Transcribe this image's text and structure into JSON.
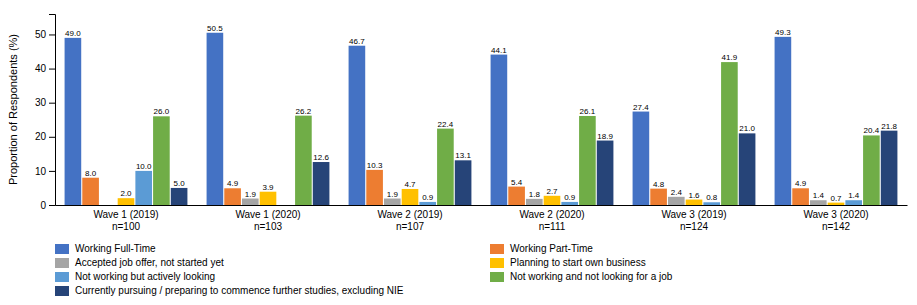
{
  "chart_data": {
    "type": "bar",
    "categories": [
      "Wave 1 (2019)\nn=100",
      "Wave 1 (2020)\nn=103",
      "Wave 2 (2019)\nn=107",
      "Wave 2 (2020)\nn=111",
      "Wave 3 (2019)\nn=124",
      "Wave 3 (2020)\nn=142"
    ],
    "series": [
      {
        "name": "Working Full-Time",
        "color": "#4472C4",
        "values": [
          49.0,
          50.5,
          46.7,
          44.1,
          27.4,
          49.3
        ],
        "value_labels": [
          "49.0",
          "50.5",
          "46.7",
          "44.1",
          "27.4",
          "49.3"
        ]
      },
      {
        "name": "Working Part-Time",
        "color": "#ED7D31",
        "values": [
          8.0,
          4.9,
          10.3,
          5.4,
          4.8,
          4.9
        ],
        "value_labels": [
          "8.0",
          "4.9",
          "10.3",
          "5.4",
          "4.8",
          "4.9"
        ]
      },
      {
        "name": "Accepted job offer, not started yet",
        "color": "#A5A5A5",
        "values": [
          0.0,
          1.9,
          1.9,
          1.8,
          2.4,
          1.4
        ],
        "value_labels": [
          null,
          "1.9",
          "1.9",
          "1.8",
          "2.4",
          "1.4"
        ]
      },
      {
        "name": "Planning to start own business",
        "color": "#FFC000",
        "values": [
          2.0,
          3.9,
          4.7,
          2.7,
          1.6,
          0.7
        ],
        "value_labels": [
          "2.0",
          "3.9",
          "4.7",
          "2.7",
          "1.6",
          "0.7"
        ]
      },
      {
        "name": "Not working but actively looking",
        "color": "#5B9BD5",
        "values": [
          10.0,
          0.0,
          0.9,
          0.9,
          0.8,
          1.4
        ],
        "value_labels": [
          "10.0",
          null,
          "0.9",
          "0.9",
          "0.8",
          "1.4"
        ]
      },
      {
        "name": "Not working and not looking for a job",
        "color": "#70AD47",
        "values": [
          26.0,
          26.2,
          22.4,
          26.1,
          41.9,
          20.4
        ],
        "value_labels": [
          "26.0",
          "26.2",
          "22.4",
          "26.1",
          "41.9",
          "20.4"
        ]
      },
      {
        "name": "Currently pursuing / preparing to commence further studies, excluding NIE",
        "color": "#264478",
        "values": [
          5.0,
          12.6,
          13.1,
          18.9,
          21.0,
          21.8
        ],
        "value_labels": [
          "5.0",
          "12.6",
          "13.1",
          "18.9",
          "21.0",
          "21.8"
        ]
      }
    ],
    "ylabel": "Proportion of Respondents (%)",
    "ylim": [
      0,
      56
    ],
    "yticks": [
      0,
      10,
      20,
      30,
      40,
      50
    ],
    "grid": false,
    "legend": "bottom",
    "data_labels": true
  }
}
